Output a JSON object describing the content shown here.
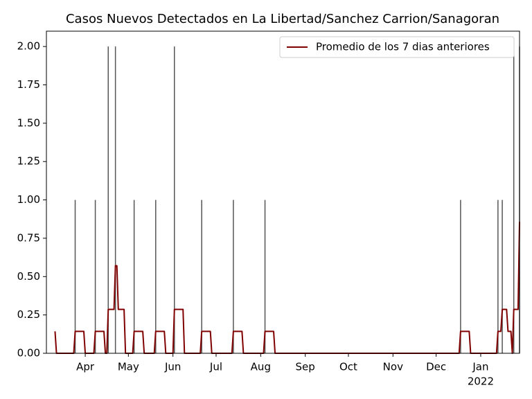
{
  "chart_data": {
    "type": "bar_line",
    "title": "Casos Nuevos Detectados en La Libertad/Sanchez Carrion/Sanagoran",
    "bars": {
      "color": "#555555",
      "x": [
        "2021-03-25",
        "2021-04-08",
        "2021-04-17",
        "2021-04-22",
        "2021-05-05",
        "2021-05-20",
        "2021-06-02",
        "2021-06-21",
        "2021-07-13",
        "2021-08-04",
        "2021-12-18",
        "2022-01-13",
        "2022-01-16",
        "2022-01-24",
        "2022-01-28"
      ],
      "values": [
        1,
        1,
        2,
        2,
        1,
        1,
        2,
        1,
        1,
        1,
        1,
        1,
        1,
        2,
        2
      ]
    },
    "series": [
      {
        "name": "Promedio de los 7 dias anteriores",
        "color": "#800000",
        "x": [
          "2021-03-11",
          "2021-03-12",
          "2021-03-24",
          "2021-03-25",
          "2021-03-31",
          "2021-04-01",
          "2021-04-07",
          "2021-04-08",
          "2021-04-14",
          "2021-04-15",
          "2021-04-16",
          "2021-04-17",
          "2021-04-21",
          "2021-04-22",
          "2021-04-23",
          "2021-04-24",
          "2021-04-28",
          "2021-04-29",
          "2021-05-04",
          "2021-05-05",
          "2021-05-11",
          "2021-05-12",
          "2021-05-19",
          "2021-05-20",
          "2021-05-26",
          "2021-05-27",
          "2021-06-01",
          "2021-06-02",
          "2021-06-08",
          "2021-06-09",
          "2021-06-20",
          "2021-06-21",
          "2021-06-27",
          "2021-06-28",
          "2021-07-12",
          "2021-07-13",
          "2021-07-19",
          "2021-07-20",
          "2021-08-03",
          "2021-08-04",
          "2021-08-10",
          "2021-08-11",
          "2021-12-17",
          "2021-12-18",
          "2021-12-24",
          "2021-12-25",
          "2022-01-12",
          "2022-01-13",
          "2022-01-15",
          "2022-01-16",
          "2022-01-19",
          "2022-01-20",
          "2022-01-22",
          "2022-01-23",
          "2022-01-24",
          "2022-01-27",
          "2022-01-28"
        ],
        "values": [
          0.143,
          0,
          0,
          0.143,
          0.143,
          0,
          0,
          0.143,
          0.143,
          0,
          0,
          0.286,
          0.286,
          0.571,
          0.571,
          0.286,
          0.286,
          0,
          0,
          0.143,
          0.143,
          0,
          0,
          0.143,
          0.143,
          0,
          0,
          0.286,
          0.286,
          0,
          0,
          0.143,
          0.143,
          0,
          0,
          0.143,
          0.143,
          0,
          0,
          0.143,
          0.143,
          0,
          0,
          0.143,
          0.143,
          0,
          0,
          0.143,
          0.143,
          0.286,
          0.286,
          0.143,
          0.143,
          0,
          0.286,
          0.286,
          0.857
        ]
      }
    ],
    "xlim": [
      "2021-03-05",
      "2022-01-28"
    ],
    "xticks": [
      {
        "value": "2021-04-01",
        "label": "Apr"
      },
      {
        "value": "2021-05-01",
        "label": "May"
      },
      {
        "value": "2021-06-01",
        "label": "Jun"
      },
      {
        "value": "2021-07-01",
        "label": "Jul"
      },
      {
        "value": "2021-08-01",
        "label": "Aug"
      },
      {
        "value": "2021-09-01",
        "label": "Sep"
      },
      {
        "value": "2021-10-01",
        "label": "Oct"
      },
      {
        "value": "2021-11-01",
        "label": "Nov"
      },
      {
        "value": "2021-12-01",
        "label": "Dec"
      },
      {
        "value": "2022-01-01",
        "label": "Jan"
      }
    ],
    "x_year_label": "2022",
    "ylim": [
      0,
      2.1
    ],
    "yticks": [
      {
        "value": 0,
        "label": "0.00"
      },
      {
        "value": 0.25,
        "label": "0.25"
      },
      {
        "value": 0.5,
        "label": "0.50"
      },
      {
        "value": 0.75,
        "label": "0.75"
      },
      {
        "value": 1,
        "label": "1.00"
      },
      {
        "value": 1.25,
        "label": "1.25"
      },
      {
        "value": 1.5,
        "label": "1.50"
      },
      {
        "value": 1.75,
        "label": "1.75"
      },
      {
        "value": 2,
        "label": "2.00"
      }
    ],
    "legend": "upper right"
  }
}
